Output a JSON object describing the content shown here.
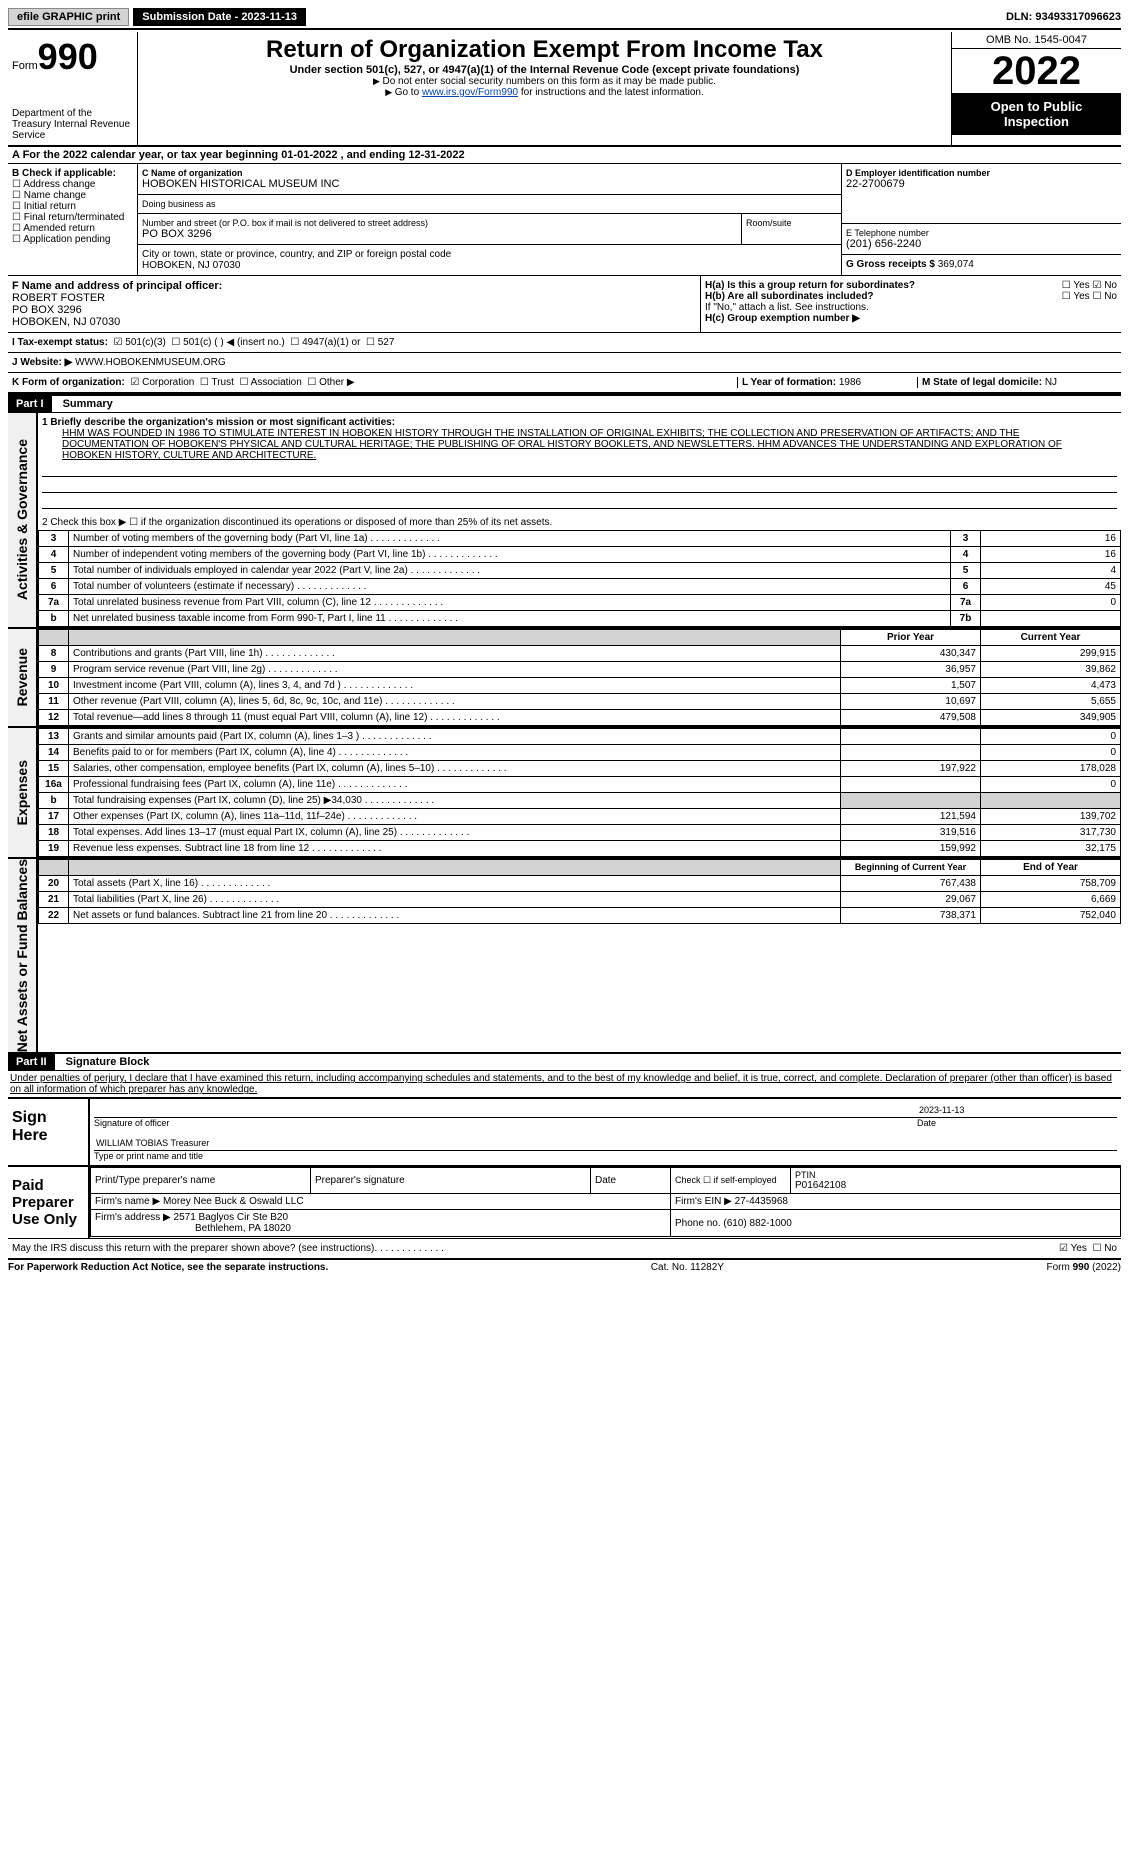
{
  "topbar": {
    "efile": "efile GRAPHIC print",
    "submission": "Submission Date - 2023-11-13",
    "dln": "DLN: 93493317096623"
  },
  "header": {
    "form_label": "Form",
    "form_num": "990",
    "dept": "Department of the Treasury Internal Revenue Service",
    "title": "Return of Organization Exempt From Income Tax",
    "sub": "Under section 501(c), 527, or 4947(a)(1) of the Internal Revenue Code (except private foundations)",
    "note1": "Do not enter social security numbers on this form as it may be made public.",
    "note2_pre": "Go to ",
    "note2_link": "www.irs.gov/Form990",
    "note2_post": " for instructions and the latest information.",
    "omb": "OMB No. 1545-0047",
    "year": "2022",
    "open": "Open to Public Inspection"
  },
  "row_a": "A For the 2022 calendar year, or tax year beginning 01-01-2022   , and ending 12-31-2022",
  "col_b": {
    "label": "B Check if applicable:",
    "items": [
      "Address change",
      "Name change",
      "Initial return",
      "Final return/terminated",
      "Amended return",
      "Application pending"
    ]
  },
  "col_c": {
    "name_label": "C Name of organization",
    "name": "HOBOKEN HISTORICAL MUSEUM INC",
    "dba_label": "Doing business as",
    "dba": "",
    "street_label": "Number and street (or P.O. box if mail is not delivered to street address)",
    "street": "PO BOX 3296",
    "room_label": "Room/suite",
    "city_label": "City or town, state or province, country, and ZIP or foreign postal code",
    "city": "HOBOKEN, NJ  07030"
  },
  "col_d": {
    "ein_label": "D Employer identification number",
    "ein": "22-2700679",
    "phone_label": "E Telephone number",
    "phone": "(201) 656-2240",
    "gross_label": "G Gross receipts $",
    "gross": "369,074"
  },
  "row_f": {
    "label": "F  Name and address of principal officer:",
    "name": "ROBERT FOSTER",
    "street": "PO BOX 3296",
    "city": "HOBOKEN, NJ  07030"
  },
  "row_h": {
    "ha": "H(a)  Is this a group return for subordinates?",
    "hb": "H(b)  Are all subordinates included?",
    "hb_note": "If \"No,\" attach a list. See instructions.",
    "hc": "H(c)  Group exemption number ▶"
  },
  "row_i": {
    "label": "I   Tax-exempt status:",
    "opts": [
      "501(c)(3)",
      "501(c) (  ) ◀ (insert no.)",
      "4947(a)(1) or",
      "527"
    ]
  },
  "row_j": {
    "label": "J   Website: ▶",
    "val": "WWW.HOBOKENMUSEUM.ORG"
  },
  "row_k": {
    "label": "K Form of organization:",
    "opts": [
      "Corporation",
      "Trust",
      "Association",
      "Other ▶"
    ]
  },
  "row_l": {
    "label": "L Year of formation:",
    "val": "1986"
  },
  "row_m": {
    "label": "M State of legal domicile:",
    "val": "NJ"
  },
  "part1": {
    "num": "Part I",
    "title": "Summary"
  },
  "mission_label": "1   Briefly describe the organization's mission or most significant activities:",
  "mission": "HHM WAS FOUNDED IN 1986 TO STIMULATE INTEREST IN HOBOKEN HISTORY THROUGH THE INSTALLATION OF ORIGINAL EXHIBITS; THE COLLECTION AND PRESERVATION OF ARTIFACTS; AND THE DOCUMENTATION OF HOBOKEN'S PHYSICAL AND CULTURAL HERITAGE; THE PUBLISHING OF ORAL HISTORY BOOKLETS, AND NEWSLETTERS. HHM ADVANCES THE UNDERSTANDING AND EXPLORATION OF HOBOKEN HISTORY, CULTURE AND ARCHITECTURE.",
  "line2": "2   Check this box ▶ ☐  if the organization discontinued its operations or disposed of more than 25% of its net assets.",
  "governance": [
    {
      "n": "3",
      "t": "Number of voting members of the governing body (Part VI, line 1a)",
      "b": "3",
      "v": "16"
    },
    {
      "n": "4",
      "t": "Number of independent voting members of the governing body (Part VI, line 1b)",
      "b": "4",
      "v": "16"
    },
    {
      "n": "5",
      "t": "Total number of individuals employed in calendar year 2022 (Part V, line 2a)",
      "b": "5",
      "v": "4"
    },
    {
      "n": "6",
      "t": "Total number of volunteers (estimate if necessary)",
      "b": "6",
      "v": "45"
    },
    {
      "n": "7a",
      "t": "Total unrelated business revenue from Part VIII, column (C), line 12",
      "b": "7a",
      "v": "0"
    },
    {
      "n": "b",
      "t": "Net unrelated business taxable income from Form 990-T, Part I, line 11",
      "b": "7b",
      "v": ""
    }
  ],
  "rev_hdr": {
    "prior": "Prior Year",
    "current": "Current Year"
  },
  "revenue": [
    {
      "n": "8",
      "t": "Contributions and grants (Part VIII, line 1h)",
      "p": "430,347",
      "c": "299,915"
    },
    {
      "n": "9",
      "t": "Program service revenue (Part VIII, line 2g)",
      "p": "36,957",
      "c": "39,862"
    },
    {
      "n": "10",
      "t": "Investment income (Part VIII, column (A), lines 3, 4, and 7d )",
      "p": "1,507",
      "c": "4,473"
    },
    {
      "n": "11",
      "t": "Other revenue (Part VIII, column (A), lines 5, 6d, 8c, 9c, 10c, and 11e)",
      "p": "10,697",
      "c": "5,655"
    },
    {
      "n": "12",
      "t": "Total revenue—add lines 8 through 11 (must equal Part VIII, column (A), line 12)",
      "p": "479,508",
      "c": "349,905"
    }
  ],
  "expenses": [
    {
      "n": "13",
      "t": "Grants and similar amounts paid (Part IX, column (A), lines 1–3 )",
      "p": "",
      "c": "0"
    },
    {
      "n": "14",
      "t": "Benefits paid to or for members (Part IX, column (A), line 4)",
      "p": "",
      "c": "0"
    },
    {
      "n": "15",
      "t": "Salaries, other compensation, employee benefits (Part IX, column (A), lines 5–10)",
      "p": "197,922",
      "c": "178,028"
    },
    {
      "n": "16a",
      "t": "Professional fundraising fees (Part IX, column (A), line 11e)",
      "p": "",
      "c": "0"
    },
    {
      "n": "b",
      "t": "Total fundraising expenses (Part IX, column (D), line 25) ▶34,030",
      "p": "shade",
      "c": "shade"
    },
    {
      "n": "17",
      "t": "Other expenses (Part IX, column (A), lines 11a–11d, 11f–24e)",
      "p": "121,594",
      "c": "139,702"
    },
    {
      "n": "18",
      "t": "Total expenses. Add lines 13–17 (must equal Part IX, column (A), line 25)",
      "p": "319,516",
      "c": "317,730"
    },
    {
      "n": "19",
      "t": "Revenue less expenses. Subtract line 18 from line 12",
      "p": "159,992",
      "c": "32,175"
    }
  ],
  "net_hdr": {
    "prior": "Beginning of Current Year",
    "current": "End of Year"
  },
  "netassets": [
    {
      "n": "20",
      "t": "Total assets (Part X, line 16)",
      "p": "767,438",
      "c": "758,709"
    },
    {
      "n": "21",
      "t": "Total liabilities (Part X, line 26)",
      "p": "29,067",
      "c": "6,669"
    },
    {
      "n": "22",
      "t": "Net assets or fund balances. Subtract line 21 from line 20",
      "p": "738,371",
      "c": "752,040"
    }
  ],
  "part2": {
    "num": "Part II",
    "title": "Signature Block"
  },
  "penalties": "Under penalties of perjury, I declare that I have examined this return, including accompanying schedules and statements, and to the best of my knowledge and belief, it is true, correct, and complete. Declaration of preparer (other than officer) is based on all information of which preparer has any knowledge.",
  "sign": {
    "label": "Sign Here",
    "sig_label": "Signature of officer",
    "date": "2023-11-13",
    "date_label": "Date",
    "name": "WILLIAM TOBIAS Treasurer",
    "name_label": "Type or print name and title"
  },
  "prep": {
    "label": "Paid Preparer Use Only",
    "h1": "Print/Type preparer's name",
    "h2": "Preparer's signature",
    "h3": "Date",
    "h4": "Check ☐ if self-employed",
    "h5": "PTIN",
    "ptin": "P01642108",
    "firm_label": "Firm's name    ▶",
    "firm": "Morey Nee Buck & Oswald LLC",
    "ein_label": "Firm's EIN ▶",
    "ein": "27-4435968",
    "addr_label": "Firm's address ▶",
    "addr": "2571 Baglyos Cir Ste B20",
    "addr2": "Bethlehem, PA  18020",
    "phone_label": "Phone no.",
    "phone": "(610) 882-1000"
  },
  "discuss": "May the IRS discuss this return with the preparer shown above? (see instructions)",
  "footer": {
    "left": "For Paperwork Reduction Act Notice, see the separate instructions.",
    "mid": "Cat. No. 11282Y",
    "right": "Form 990 (2022)"
  },
  "vert": {
    "gov": "Activities & Governance",
    "rev": "Revenue",
    "exp": "Expenses",
    "net": "Net Assets or Fund Balances"
  }
}
